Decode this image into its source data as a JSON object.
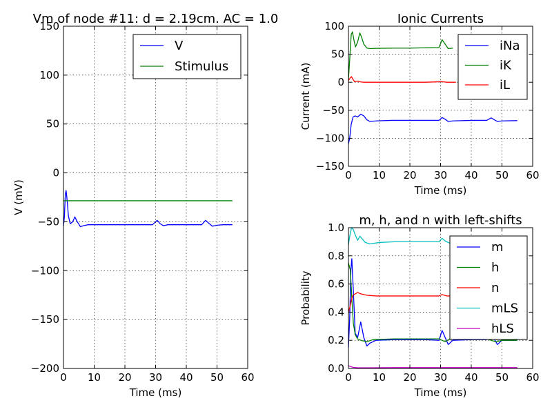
{
  "chart_data": [
    {
      "id": "vm",
      "type": "line",
      "title": "Vm of node #11: d = 2.19cm. AC = 1.0",
      "xlabel": "Time (ms)",
      "ylabel": "V (mV)",
      "xlim": [
        0,
        60
      ],
      "ylim": [
        -200,
        150
      ],
      "xticks": [
        0,
        10,
        20,
        30,
        40,
        50,
        60
      ],
      "yticks": [
        -200,
        -150,
        -100,
        -50,
        0,
        50,
        100,
        150
      ],
      "xtick_labels": [
        "0",
        "10",
        "20",
        "30",
        "40",
        "50",
        "60"
      ],
      "ytick_labels": [
        "−200",
        "−150",
        "−100",
        "−50",
        "0",
        "50",
        "100",
        "150"
      ],
      "grid": true,
      "legend_position": "top-right",
      "series": [
        {
          "name": "V",
          "color": "#0000ff",
          "points": [
            [
              0,
              -54
            ],
            [
              0.3,
              -45
            ],
            [
              0.6,
              -22
            ],
            [
              0.85,
              -18
            ],
            [
              1.2,
              -28
            ],
            [
              1.6,
              -44
            ],
            [
              2.2,
              -52
            ],
            [
              3.0,
              -50
            ],
            [
              3.7,
              -45
            ],
            [
              4.5,
              -50
            ],
            [
              5.5,
              -55
            ],
            [
              6.5,
              -54
            ],
            [
              8,
              -53
            ],
            [
              10,
              -53
            ],
            [
              15,
              -53
            ],
            [
              20,
              -53
            ],
            [
              25,
              -53
            ],
            [
              29,
              -53
            ],
            [
              30.5,
              -48.5
            ],
            [
              31.5,
              -52
            ],
            [
              32.5,
              -54
            ],
            [
              34,
              -53
            ],
            [
              38,
              -53
            ],
            [
              42,
              -53
            ],
            [
              45,
              -53
            ],
            [
              46.3,
              -48.5
            ],
            [
              47.5,
              -52
            ],
            [
              48.5,
              -54.5
            ],
            [
              50,
              -53.5
            ],
            [
              52,
              -53
            ],
            [
              55,
              -53
            ]
          ]
        },
        {
          "name": "Stimulus",
          "color": "#008000",
          "points": [
            [
              0,
              -28.5
            ],
            [
              55,
              -28.5
            ]
          ]
        }
      ]
    },
    {
      "id": "ionic",
      "type": "line",
      "title": "Ionic Currents",
      "xlabel": "Time (ms)",
      "ylabel": "Current (mA)",
      "xlim": [
        0,
        60
      ],
      "ylim": [
        -150,
        100
      ],
      "xticks": [
        0,
        10,
        20,
        30,
        40,
        50,
        60
      ],
      "yticks": [
        -150,
        -100,
        -50,
        0,
        50,
        100
      ],
      "xtick_labels": [
        "0",
        "10",
        "20",
        "30",
        "40",
        "50",
        "60"
      ],
      "ytick_labels": [
        "−150",
        "−100",
        "−50",
        "0",
        "50",
        "100"
      ],
      "grid": true,
      "legend_position": "top-right",
      "series": [
        {
          "name": "iNa",
          "color": "#0000ff",
          "points": [
            [
              0,
              -110
            ],
            [
              0.4,
              -100
            ],
            [
              0.9,
              -75
            ],
            [
              1.5,
              -62
            ],
            [
              2.2,
              -60
            ],
            [
              3,
              -62
            ],
            [
              4,
              -57
            ],
            [
              5,
              -60
            ],
            [
              6,
              -67
            ],
            [
              7,
              -70
            ],
            [
              9,
              -69
            ],
            [
              14,
              -68
            ],
            [
              20,
              -68
            ],
            [
              25,
              -68
            ],
            [
              29.5,
              -68
            ],
            [
              30.5,
              -63
            ],
            [
              31.5,
              -66
            ],
            [
              32.5,
              -70
            ],
            [
              34,
              -69
            ],
            [
              40,
              -68
            ],
            [
              45,
              -68
            ],
            [
              46.5,
              -63.5
            ],
            [
              47.5,
              -67
            ],
            [
              48.5,
              -70
            ],
            [
              50,
              -69
            ],
            [
              55,
              -68.5
            ]
          ]
        },
        {
          "name": "iK",
          "color": "#008000",
          "points": [
            [
              0,
              5
            ],
            [
              0.4,
              40
            ],
            [
              0.9,
              85
            ],
            [
              1.3,
              90
            ],
            [
              1.8,
              75
            ],
            [
              2.3,
              63
            ],
            [
              3.0,
              72
            ],
            [
              3.7,
              88
            ],
            [
              4.3,
              80
            ],
            [
              5.0,
              68
            ],
            [
              6.0,
              61
            ],
            [
              7,
              60
            ],
            [
              9,
              60.5
            ],
            [
              15,
              61
            ],
            [
              20,
              61
            ],
            [
              25,
              61.5
            ],
            [
              29.5,
              62
            ],
            [
              30.5,
              76
            ],
            [
              31.5,
              68
            ],
            [
              32.5,
              60
            ],
            [
              34,
              61
            ]
          ]
        },
        {
          "name": "iL",
          "color": "#ff0000",
          "points": [
            [
              0,
              3
            ],
            [
              0.6,
              8
            ],
            [
              1.0,
              10
            ],
            [
              1.5,
              5
            ],
            [
              2.0,
              1
            ],
            [
              3.0,
              2
            ],
            [
              4,
              0.5
            ],
            [
              5,
              0
            ],
            [
              8,
              0
            ],
            [
              15,
              0
            ],
            [
              25,
              0
            ],
            [
              30.5,
              1
            ],
            [
              32,
              0
            ],
            [
              35,
              0
            ]
          ]
        }
      ]
    },
    {
      "id": "gates",
      "type": "line",
      "title": "m, h, and n with left-shifts",
      "xlabel": "Time (ms)",
      "ylabel": "Probability",
      "xlim": [
        0,
        60
      ],
      "ylim": [
        0.0,
        1.0
      ],
      "xticks": [
        0,
        10,
        20,
        30,
        40,
        50,
        60
      ],
      "yticks": [
        0.0,
        0.2,
        0.4,
        0.6,
        0.8,
        1.0
      ],
      "xtick_labels": [
        "0",
        "10",
        "20",
        "30",
        "40",
        "50",
        "60"
      ],
      "ytick_labels": [
        "0.0",
        "0.2",
        "0.4",
        "0.6",
        "0.8",
        "1.0"
      ],
      "grid": true,
      "legend_position": "top-right",
      "series": [
        {
          "name": "m",
          "color": "#0000ff",
          "points": [
            [
              0,
              0.15
            ],
            [
              0.4,
              0.35
            ],
            [
              0.8,
              0.7
            ],
            [
              1.1,
              0.78
            ],
            [
              1.6,
              0.55
            ],
            [
              2.2,
              0.25
            ],
            [
              3.0,
              0.22
            ],
            [
              4.0,
              0.33
            ],
            [
              5.0,
              0.22
            ],
            [
              6.0,
              0.16
            ],
            [
              7.0,
              0.18
            ],
            [
              9,
              0.2
            ],
            [
              15,
              0.205
            ],
            [
              25,
              0.205
            ],
            [
              29.5,
              0.2
            ],
            [
              30.5,
              0.27
            ],
            [
              31.5,
              0.22
            ],
            [
              32.5,
              0.17
            ],
            [
              34,
              0.2
            ],
            [
              40,
              0.205
            ],
            [
              45,
              0.205
            ],
            [
              46.5,
              0.24
            ],
            [
              47.5,
              0.21
            ],
            [
              48.5,
              0.17
            ],
            [
              50,
              0.2
            ],
            [
              55,
              0.2
            ]
          ]
        },
        {
          "name": "h",
          "color": "#008000",
          "points": [
            [
              0,
              0.75
            ],
            [
              0.6,
              0.7
            ],
            [
              1.1,
              0.5
            ],
            [
              1.6,
              0.32
            ],
            [
              2.2,
              0.24
            ],
            [
              3,
              0.21
            ],
            [
              4,
              0.2
            ],
            [
              6,
              0.19
            ],
            [
              8,
              0.205
            ],
            [
              15,
              0.21
            ],
            [
              25,
              0.21
            ],
            [
              29.5,
              0.21
            ],
            [
              30.5,
              0.2
            ],
            [
              31.5,
              0.19
            ],
            [
              33,
              0.21
            ],
            [
              40,
              0.21
            ],
            [
              45,
              0.21
            ],
            [
              46.5,
              0.2
            ],
            [
              48,
              0.19
            ],
            [
              50,
              0.2
            ],
            [
              55,
              0.2
            ]
          ]
        },
        {
          "name": "n",
          "color": "#ff0000",
          "points": [
            [
              0,
              0.4
            ],
            [
              0.5,
              0.44
            ],
            [
              1,
              0.49
            ],
            [
              1.5,
              0.52
            ],
            [
              2.2,
              0.53
            ],
            [
              3,
              0.54
            ],
            [
              4,
              0.53
            ],
            [
              6,
              0.52
            ],
            [
              9,
              0.515
            ],
            [
              15,
              0.515
            ],
            [
              25,
              0.515
            ],
            [
              29.5,
              0.515
            ],
            [
              30.5,
              0.525
            ],
            [
              32,
              0.515
            ],
            [
              35,
              0.515
            ]
          ]
        },
        {
          "name": "mLS",
          "color": "#00bfbf",
          "points": [
            [
              0,
              0.88
            ],
            [
              0.5,
              0.95
            ],
            [
              1.0,
              1.0
            ],
            [
              1.5,
              0.99
            ],
            [
              2.2,
              0.95
            ],
            [
              3.0,
              0.91
            ],
            [
              3.7,
              0.94
            ],
            [
              4.5,
              0.92
            ],
            [
              5.5,
              0.895
            ],
            [
              7,
              0.885
            ],
            [
              10,
              0.895
            ],
            [
              15,
              0.9
            ],
            [
              20,
              0.9
            ],
            [
              25,
              0.9
            ],
            [
              29.5,
              0.9
            ],
            [
              30.5,
              0.925
            ],
            [
              31.5,
              0.905
            ],
            [
              33,
              0.89
            ]
          ]
        },
        {
          "name": "hLS",
          "color": "#bf00bf",
          "points": [
            [
              0,
              0.02
            ],
            [
              0.5,
              0.015
            ],
            [
              1.5,
              0.008
            ],
            [
              3,
              0.005
            ],
            [
              6,
              0.005
            ],
            [
              15,
              0.006
            ],
            [
              30,
              0.006
            ],
            [
              45,
              0.006
            ],
            [
              55,
              0.006
            ]
          ]
        }
      ]
    }
  ]
}
